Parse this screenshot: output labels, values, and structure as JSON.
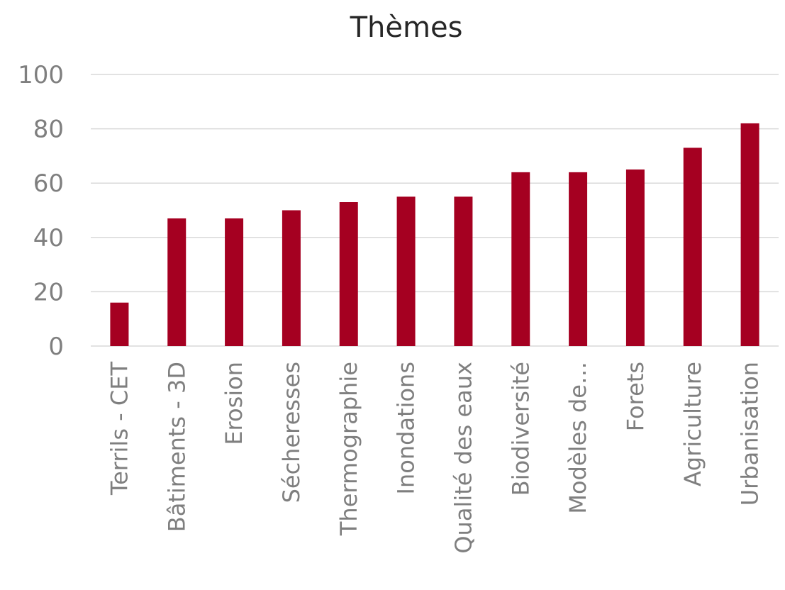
{
  "chart_data": {
    "type": "bar",
    "title": "Thèmes",
    "xlabel": "",
    "ylabel": "",
    "ylim": [
      0,
      100
    ],
    "yticks": [
      0,
      20,
      40,
      60,
      80,
      100
    ],
    "grid": true,
    "legend": "none",
    "bar_color": "#a50021",
    "categories": [
      "Terrils - CET",
      "Bâtiments - 3D",
      "Erosion",
      "Sécheresses",
      "Thermographie",
      "Inondations",
      "Qualité des eaux",
      "Biodiversité",
      "Modèles de…",
      "Forets",
      "Agriculture",
      "Urbanisation"
    ],
    "values": [
      16,
      47,
      47,
      50,
      53,
      55,
      55,
      64,
      64,
      65,
      73,
      82
    ]
  }
}
